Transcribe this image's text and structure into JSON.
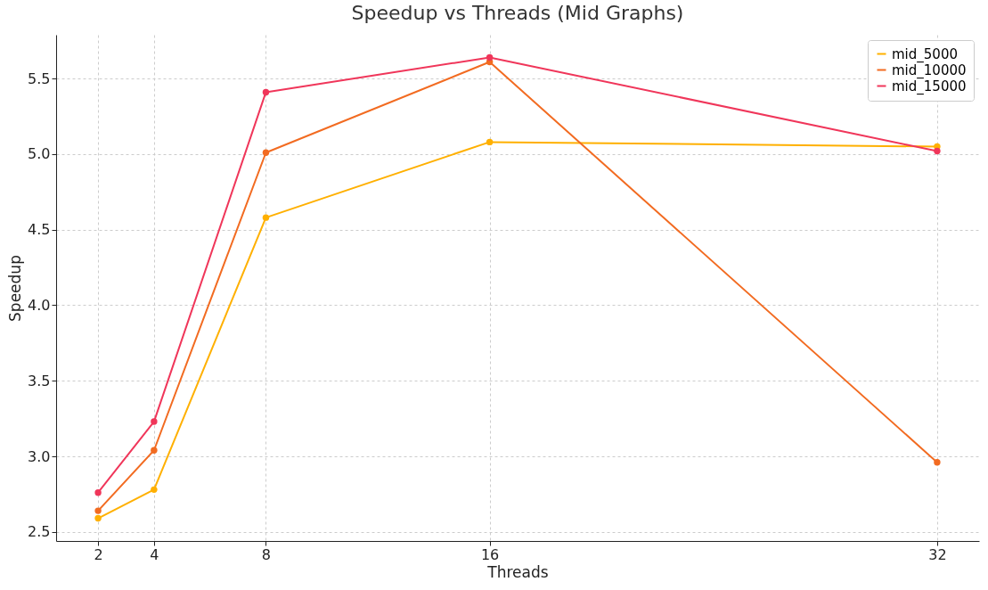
{
  "chart_data": {
    "type": "line",
    "title": "Speedup vs Threads (Mid Graphs)",
    "xlabel": "Threads",
    "ylabel": "Speedup",
    "x": [
      2,
      4,
      8,
      16,
      32
    ],
    "series": [
      {
        "name": "mid_5000",
        "color": "#ffb000",
        "values": [
          2.59,
          2.78,
          4.58,
          5.08,
          5.05
        ]
      },
      {
        "name": "mid_10000",
        "color": "#f26b21",
        "values": [
          2.64,
          3.04,
          5.01,
          5.61,
          2.96
        ]
      },
      {
        "name": "mid_15000",
        "color": "#f0365a",
        "values": [
          2.76,
          3.23,
          5.41,
          5.64,
          5.02
        ]
      }
    ],
    "xlim": [
      0.5,
      33.5
    ],
    "xticks": [
      2,
      4,
      8,
      16,
      32
    ],
    "ylim": [
      2.44,
      5.79
    ],
    "yticks": [
      2.5,
      {
        "value": 3,
        "label": "3.0"
      },
      3.5,
      {
        "value": 4,
        "label": "4.0"
      },
      4.5,
      {
        "value": 5,
        "label": "5.0"
      },
      5.5
    ],
    "grid": true,
    "legend": "top right",
    "marker": "circle",
    "line_style": "solid"
  }
}
